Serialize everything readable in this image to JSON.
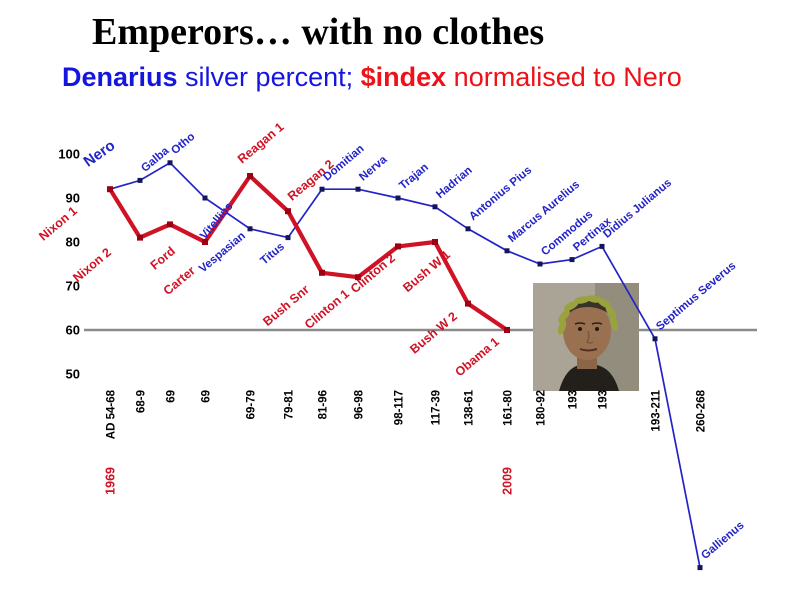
{
  "title": "Emperors… with no clothes",
  "subtitle": {
    "denarius": "Denarius",
    "silver_percent": " silver percent; ",
    "dollar_index": "$index",
    "normalised": " normalised to Nero"
  },
  "photo": {
    "alt": "Barack Obama wearing a Roman laurel wreath"
  },
  "colors": {
    "denarius_blue": "#2323c8",
    "dollar_red": "#d01225",
    "reference_gray": "#8a8a8a",
    "text_black": "#000000"
  },
  "chart_data": {
    "type": "line",
    "title": "Emperors… with no clothes",
    "subtitle": "Denarius silver percent; $index normalised to Nero",
    "xlabel": "",
    "ylabel": "",
    "ylim_axis": [
      50,
      100
    ],
    "y_ticks": [
      100,
      90,
      80,
      70,
      60,
      50
    ],
    "reference_line": 60,
    "grid": false,
    "legend_position": "subtitle-inline",
    "series": [
      {
        "name": "Denarius silver percent",
        "color": "#2323c8",
        "points": [
          {
            "label": "Nero",
            "period": "AD 54-68",
            "value": 92
          },
          {
            "label": "Galba",
            "period": "68-9",
            "value": 94
          },
          {
            "label": "Otho",
            "period": "69",
            "value": 98
          },
          {
            "label": "Vitellius",
            "period": "69",
            "value": 90
          },
          {
            "label": "Vespasian",
            "period": "69-79",
            "value": 83
          },
          {
            "label": "Titus",
            "period": "79-81",
            "value": 81
          },
          {
            "label": "Domitian",
            "period": "81-96",
            "value": 92
          },
          {
            "label": "Nerva",
            "period": "96-98",
            "value": 92
          },
          {
            "label": "Trajan",
            "period": "98-117",
            "value": 90
          },
          {
            "label": "Hadrian",
            "period": "117-39",
            "value": 88
          },
          {
            "label": "Antonius Pius",
            "period": "138-61",
            "value": 83
          },
          {
            "label": "Marcus Aurelius",
            "period": "161-80",
            "value": 78
          },
          {
            "label": "Commodus",
            "period": "180-92",
            "value": 75
          },
          {
            "label": "Pertinax",
            "period": "193",
            "value": 76
          },
          {
            "label": "Didius Julianus",
            "period": "193",
            "value": 79
          },
          {
            "label": "Septimus Severus",
            "period": "193-211",
            "value": 58
          },
          {
            "label": "Gallienus",
            "period": "260-268",
            "value": 6
          }
        ]
      },
      {
        "name": "$index normalised to Nero",
        "color": "#d01225",
        "points": [
          {
            "label": "Nixon 1",
            "year": "1969",
            "value": 92
          },
          {
            "label": "Nixon 2",
            "value": 81
          },
          {
            "label": "Ford",
            "value": 84
          },
          {
            "label": "Carter",
            "value": 80
          },
          {
            "label": "Reagan 1",
            "value": 95
          },
          {
            "label": "Reagan 2",
            "value": 87
          },
          {
            "label": "Bush Snr",
            "value": 73
          },
          {
            "label": "Clinton 1",
            "value": 72
          },
          {
            "label": "Clinton 2",
            "value": 79
          },
          {
            "label": "Bush W 1",
            "value": 80
          },
          {
            "label": "Bush W 2",
            "value": 66
          },
          {
            "label": "Obama 1",
            "year": "2009",
            "value": 60
          }
        ]
      }
    ],
    "x_year_labels": [
      {
        "text": "1969",
        "index": 0
      },
      {
        "text": "2009",
        "index": 11
      }
    ]
  }
}
